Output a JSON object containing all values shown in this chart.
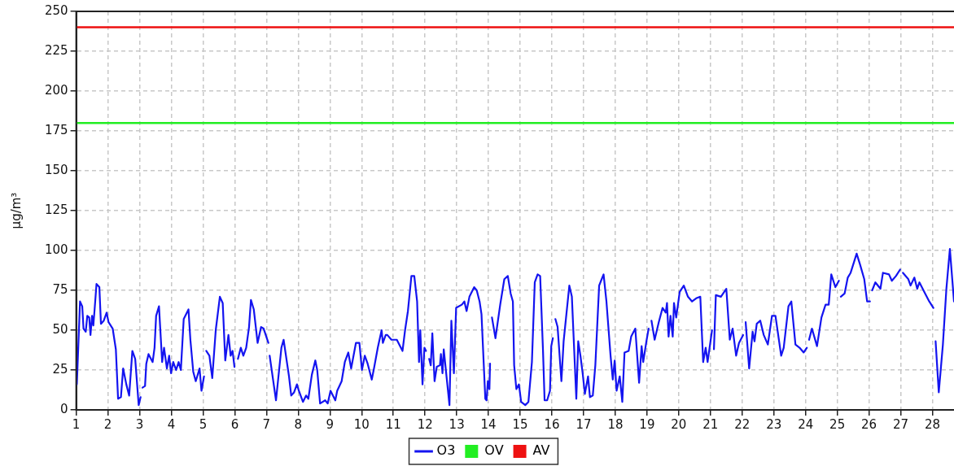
{
  "chart_data": {
    "type": "line",
    "ylabel": "μg/m³",
    "xlim": [
      1,
      28.68
    ],
    "xticks": [
      1,
      2,
      3,
      4,
      5,
      6,
      7,
      8,
      9,
      10,
      11,
      12,
      13,
      14,
      15,
      16,
      17,
      18,
      19,
      20,
      21,
      22,
      23,
      24,
      25,
      26,
      27,
      28
    ],
    "ylim": [
      0,
      250
    ],
    "yticks": [
      0,
      25,
      50,
      75,
      100,
      125,
      150,
      175,
      200,
      225,
      250
    ],
    "grid": true,
    "legend": "bottom",
    "marker": "none",
    "line_style": "solid",
    "series": [
      {
        "name": "O3",
        "color": "#1414f0",
        "x": [
          1.0,
          1.02,
          1.12,
          1.19,
          1.23,
          1.3,
          1.35,
          1.41,
          1.45,
          1.5,
          1.54,
          1.58,
          1.64,
          1.73,
          1.78,
          1.87,
          1.96,
          2.02,
          2.15,
          2.25,
          2.32,
          2.41,
          2.48,
          2.58,
          2.67,
          2.77,
          2.86,
          2.97,
          3.03,
          3.06,
          3.09,
          3.17,
          3.21,
          3.28,
          3.41,
          3.47,
          3.52,
          3.61,
          3.71,
          3.77,
          3.86,
          3.93,
          3.99,
          4.06,
          4.15,
          4.23,
          4.3,
          4.39,
          4.54,
          4.6,
          4.69,
          4.77,
          4.89,
          4.95,
          5.03,
          5.06,
          5.1,
          5.2,
          5.29,
          5.4,
          5.53,
          5.62,
          5.7,
          5.8,
          5.87,
          5.93,
          5.99,
          6.05,
          6.1,
          6.19,
          6.27,
          6.36,
          6.45,
          6.51,
          6.6,
          6.72,
          6.83,
          6.91,
          7.06,
          7.08,
          7.1,
          7.3,
          7.47,
          7.54,
          7.71,
          7.78,
          7.87,
          7.96,
          8.02,
          8.15,
          8.25,
          8.32,
          8.43,
          8.54,
          8.6,
          8.69,
          8.85,
          8.93,
          9.02,
          9.17,
          9.23,
          9.37,
          9.47,
          9.58,
          9.67,
          9.82,
          9.93,
          10.01,
          10.1,
          10.19,
          10.32,
          10.39,
          10.51,
          10.63,
          10.67,
          10.76,
          10.81,
          10.94,
          11.11,
          11.29,
          11.37,
          11.46,
          11.57,
          11.66,
          11.75,
          11.81,
          11.85,
          11.92,
          11.98,
          12.03,
          12.08,
          12.13,
          12.18,
          12.23,
          12.3,
          12.37,
          12.47,
          12.5,
          12.55,
          12.59,
          12.77,
          12.83,
          12.91,
          12.98,
          13.16,
          13.24,
          13.31,
          13.4,
          13.55,
          13.63,
          13.72,
          13.78,
          13.9,
          13.94,
          13.98,
          14.03,
          14.05,
          14.08,
          14.11,
          14.22,
          14.37,
          14.5,
          14.61,
          14.7,
          14.77,
          14.81,
          14.88,
          14.96,
          15.03,
          15.16,
          15.26,
          15.37,
          15.46,
          15.55,
          15.63,
          15.72,
          15.77,
          15.85,
          15.94,
          15.98,
          16.03,
          16.07,
          16.11,
          16.18,
          16.3,
          16.37,
          16.55,
          16.63,
          16.77,
          16.83,
          16.9,
          16.97,
          17.04,
          17.14,
          17.2,
          17.29,
          17.37,
          17.49,
          17.57,
          17.63,
          17.72,
          17.85,
          17.92,
          17.98,
          18.04,
          18.14,
          18.22,
          18.29,
          18.42,
          18.5,
          18.63,
          18.75,
          18.83,
          18.88,
          18.98,
          19.05,
          19.1,
          19.14,
          19.24,
          19.37,
          19.49,
          19.59,
          19.63,
          19.68,
          19.74,
          19.81,
          19.85,
          19.92,
          20.03,
          20.16,
          20.29,
          20.42,
          20.55,
          20.68,
          20.77,
          20.85,
          20.91,
          21.05,
          21.08,
          21.11,
          21.17,
          21.33,
          21.5,
          21.61,
          21.7,
          21.81,
          21.9,
          22.03,
          22.07,
          22.11,
          22.22,
          22.33,
          22.39,
          22.46,
          22.57,
          22.68,
          22.81,
          22.94,
          23.05,
          23.23,
          23.31,
          23.46,
          23.55,
          23.68,
          23.81,
          23.94,
          24.04,
          24.08,
          24.11,
          24.2,
          24.36,
          24.5,
          24.63,
          24.73,
          24.81,
          24.94,
          25.05,
          25.08,
          25.11,
          25.23,
          25.33,
          25.42,
          25.61,
          25.72,
          25.85,
          25.94,
          26.03,
          26.06,
          26.1,
          26.2,
          26.36,
          26.44,
          26.63,
          26.72,
          26.85,
          26.98,
          27.02,
          27.07,
          27.24,
          27.31,
          27.43,
          27.52,
          27.59,
          27.77,
          27.9,
          28.03,
          28.06,
          28.1,
          28.2,
          28.33,
          28.44,
          28.55,
          28.68
        ],
        "values": [
          30,
          16,
          68,
          65,
          51,
          49,
          59,
          58,
          47,
          59,
          53,
          63,
          79,
          77,
          54,
          56,
          61,
          55,
          51,
          38,
          7,
          8,
          26,
          16,
          9,
          37,
          32,
          3,
          8,
          null,
          14,
          15,
          29,
          35,
          30,
          39,
          59,
          65,
          30,
          39,
          26,
          34,
          23,
          30,
          25,
          30,
          25,
          57,
          63,
          44,
          24,
          18,
          26,
          12,
          21,
          null,
          37,
          34,
          20,
          50,
          71,
          67,
          31,
          47,
          34,
          37,
          27,
          null,
          32,
          39,
          34,
          39,
          52,
          69,
          63,
          42,
          52,
          51,
          42,
          null,
          34,
          6,
          39,
          44,
          21,
          9,
          11,
          16,
          12,
          5,
          9,
          7,
          22,
          31,
          25,
          4,
          6,
          4,
          12,
          6,
          12,
          18,
          30,
          36,
          26,
          42,
          42,
          25,
          34,
          29,
          19,
          26,
          39,
          50,
          42,
          47,
          47,
          44,
          44,
          37,
          50,
          62,
          84,
          84,
          68,
          30,
          50,
          16,
          39,
          37,
          null,
          32,
          28,
          48,
          18,
          27,
          28,
          35,
          23,
          38,
          3,
          56,
          23,
          64,
          66,
          68,
          62,
          71,
          77,
          75,
          68,
          60,
          7,
          6,
          18,
          13,
          29,
          null,
          58,
          45,
          66,
          82,
          84,
          73,
          68,
          28,
          13,
          16,
          5,
          3,
          5,
          30,
          80,
          85,
          84,
          37,
          6,
          6,
          12,
          40,
          45,
          null,
          57,
          52,
          18,
          43,
          78,
          71,
          7,
          43,
          34,
          23,
          10,
          21,
          8,
          9,
          28,
          78,
          82,
          85,
          68,
          34,
          19,
          31,
          12,
          21,
          5,
          36,
          37,
          46,
          51,
          17,
          40,
          30,
          43,
          51,
          null,
          56,
          44,
          55,
          64,
          61,
          67,
          46,
          59,
          46,
          67,
          58,
          74,
          78,
          71,
          68,
          70,
          71,
          30,
          39,
          30,
          50,
          null,
          38,
          72,
          71,
          76,
          44,
          51,
          34,
          42,
          47,
          null,
          55,
          26,
          49,
          43,
          54,
          56,
          47,
          41,
          59,
          59,
          34,
          39,
          65,
          68,
          41,
          39,
          36,
          39,
          null,
          44,
          51,
          40,
          58,
          66,
          66,
          85,
          77,
          81,
          null,
          71,
          73,
          83,
          86,
          98,
          91,
          82,
          68,
          68,
          null,
          75,
          80,
          76,
          86,
          85,
          81,
          84,
          88,
          null,
          86,
          82,
          78,
          83,
          76,
          80,
          73,
          68,
          64,
          null,
          43,
          11,
          41,
          76,
          101,
          68
        ]
      }
    ],
    "ref_lines": [
      {
        "axis": "y",
        "value": 180,
        "label": "OV",
        "color": "#22ee22"
      },
      {
        "axis": "y",
        "value": 240,
        "label": "AV",
        "color": "#ee1111"
      }
    ]
  }
}
